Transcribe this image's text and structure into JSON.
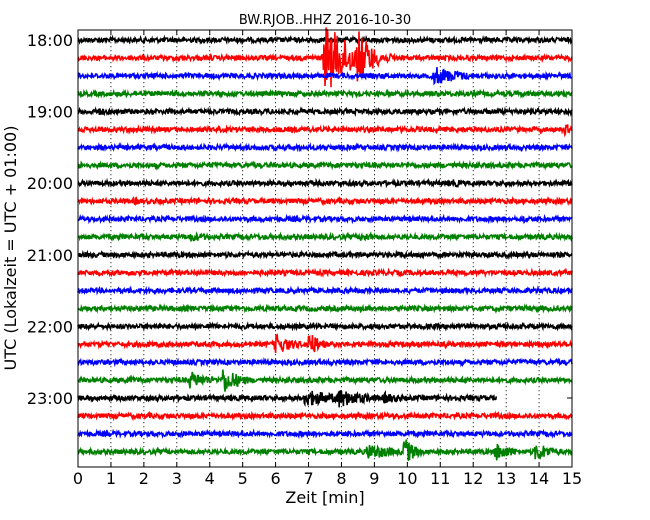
{
  "chart_data": {
    "type": "line",
    "title": "BW.RJOB..HHZ 2016-10-30",
    "xlabel": "Zeit  [min]",
    "ylabel": "UTC (Lokalzeit = UTC + 01:00)",
    "xlim": [
      0,
      15
    ],
    "x_ticks": [
      "0",
      "1",
      "2",
      "3",
      "4",
      "5",
      "6",
      "7",
      "8",
      "9",
      "10",
      "11",
      "12",
      "13",
      "14",
      "15"
    ],
    "y_tick_labels": [
      "18:00",
      "19:00",
      "20:00",
      "21:00",
      "22:00",
      "23:00"
    ],
    "y_tick_rows": [
      0,
      4,
      8,
      12,
      16,
      20
    ],
    "grid": "vertical dotted lines at each minute",
    "colors": [
      "#000000",
      "#ff0000",
      "#0000ff",
      "#008000"
    ],
    "rows_per_hour": 4,
    "minutes_per_row": 15,
    "noise_level": 0.12,
    "traces": [
      {
        "start_time": "18:00",
        "row": 0,
        "end_minute": 15,
        "events": []
      },
      {
        "start_time": "18:15",
        "row": 1,
        "end_minute": 15,
        "events": [
          {
            "t": 7.5,
            "amp": 1.8,
            "dur": 2.0
          },
          {
            "t": 8.5,
            "amp": 1.5,
            "dur": 1.0
          }
        ]
      },
      {
        "start_time": "18:30",
        "row": 2,
        "end_minute": 15,
        "events": [
          {
            "t": 10.8,
            "amp": 0.5,
            "dur": 2.2
          }
        ]
      },
      {
        "start_time": "18:45",
        "row": 3,
        "end_minute": 15,
        "events": []
      },
      {
        "start_time": "19:00",
        "row": 4,
        "end_minute": 15,
        "events": [
          {
            "t": 0.6,
            "amp": 0.28,
            "dur": 0.6
          }
        ]
      },
      {
        "start_time": "19:15",
        "row": 5,
        "end_minute": 15,
        "events": [
          {
            "t": 6.5,
            "amp": 0.18,
            "dur": 0.3
          },
          {
            "t": 14.8,
            "amp": 0.35,
            "dur": 0.3
          }
        ]
      },
      {
        "start_time": "19:30",
        "row": 6,
        "end_minute": 15,
        "events": []
      },
      {
        "start_time": "19:45",
        "row": 7,
        "end_minute": 15,
        "events": [
          {
            "t": 0.0,
            "amp": 0.2,
            "dur": 1.2
          }
        ]
      },
      {
        "start_time": "20:00",
        "row": 8,
        "end_minute": 15,
        "events": [
          {
            "t": 11.3,
            "amp": 0.22,
            "dur": 1.6
          }
        ]
      },
      {
        "start_time": "20:15",
        "row": 9,
        "end_minute": 15,
        "events": [
          {
            "t": 1.7,
            "amp": 0.2,
            "dur": 1.3
          }
        ]
      },
      {
        "start_time": "20:30",
        "row": 10,
        "end_minute": 15,
        "events": [
          {
            "t": 13.5,
            "amp": 0.2,
            "dur": 1.5
          }
        ]
      },
      {
        "start_time": "20:45",
        "row": 11,
        "end_minute": 15,
        "events": [
          {
            "t": 3.4,
            "amp": 0.25,
            "dur": 2.0
          },
          {
            "t": 8.6,
            "amp": 0.25,
            "dur": 1.6
          }
        ]
      },
      {
        "start_time": "21:00",
        "row": 12,
        "end_minute": 15,
        "events": []
      },
      {
        "start_time": "21:15",
        "row": 13,
        "end_minute": 15,
        "events": []
      },
      {
        "start_time": "21:30",
        "row": 14,
        "end_minute": 15,
        "events": []
      },
      {
        "start_time": "21:45",
        "row": 15,
        "end_minute": 15,
        "events": []
      },
      {
        "start_time": "22:00",
        "row": 16,
        "end_minute": 15,
        "events": []
      },
      {
        "start_time": "22:15",
        "row": 17,
        "end_minute": 15,
        "events": [
          {
            "t": 6.0,
            "amp": 0.55,
            "dur": 1.3
          },
          {
            "t": 7.0,
            "amp": 0.7,
            "dur": 0.8
          }
        ]
      },
      {
        "start_time": "22:30",
        "row": 18,
        "end_minute": 15,
        "events": []
      },
      {
        "start_time": "22:45",
        "row": 19,
        "end_minute": 15,
        "events": [
          {
            "t": 1.5,
            "amp": 0.2,
            "dur": 1.0
          },
          {
            "t": 3.4,
            "amp": 0.45,
            "dur": 1.5
          },
          {
            "t": 4.4,
            "amp": 0.7,
            "dur": 1.2
          }
        ]
      },
      {
        "start_time": "23:00",
        "row": 20,
        "end_minute": 12.7,
        "events": [
          {
            "t": 6.9,
            "amp": 0.45,
            "dur": 2.5
          },
          {
            "t": 7.9,
            "amp": 0.5,
            "dur": 2.0
          },
          {
            "t": 9.3,
            "amp": 0.3,
            "dur": 1.5
          }
        ]
      },
      {
        "start_time": "23:15",
        "row": 21,
        "end_minute": 15,
        "events": []
      },
      {
        "start_time": "23:30",
        "row": 22,
        "end_minute": 15,
        "events": []
      },
      {
        "start_time": "23:45",
        "row": 23,
        "end_minute": 15,
        "events": [
          {
            "t": 8.8,
            "amp": 0.45,
            "dur": 2.0
          },
          {
            "t": 9.9,
            "amp": 0.75,
            "dur": 0.8
          },
          {
            "t": 12.7,
            "amp": 0.5,
            "dur": 1.2
          },
          {
            "t": 13.9,
            "amp": 0.5,
            "dur": 1.3
          }
        ]
      }
    ]
  }
}
